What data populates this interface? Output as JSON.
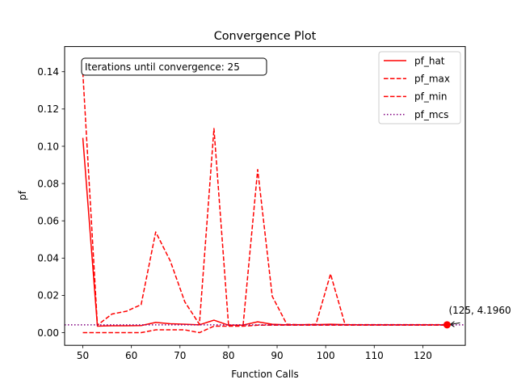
{
  "chart_data": {
    "type": "line",
    "title": "Convergence Plot",
    "xlabel": "Function Calls",
    "ylabel": "pf",
    "xlim": [
      46.25,
      128.75
    ],
    "ylim": [
      -0.0068,
      0.1535
    ],
    "xticks": [
      50,
      60,
      70,
      80,
      90,
      100,
      110,
      120
    ],
    "yticks": [
      0.0,
      0.02,
      0.04,
      0.06,
      0.08,
      0.1,
      0.12,
      0.14
    ],
    "ytick_labels": [
      "0.00",
      "0.02",
      "0.04",
      "0.06",
      "0.08",
      "0.10",
      "0.12",
      "0.14"
    ],
    "legend_position": "upper right",
    "series": [
      {
        "name": "pf_hat",
        "color": "#ff0000",
        "style": "solid",
        "x": [
          50,
          53,
          56,
          59,
          62,
          65,
          68,
          71,
          74,
          77,
          80,
          83,
          86,
          89,
          92,
          95,
          98,
          101,
          104,
          107,
          110,
          113,
          116,
          119,
          122,
          125
        ],
        "y": [
          0.1045,
          0.0035,
          0.0037,
          0.0037,
          0.0038,
          0.0055,
          0.0048,
          0.0045,
          0.0042,
          0.0067,
          0.004,
          0.0041,
          0.0058,
          0.0045,
          0.0042,
          0.0043,
          0.0043,
          0.0045,
          0.0043,
          0.0042,
          0.0042,
          0.0042,
          0.0042,
          0.0042,
          0.0042,
          0.0042
        ]
      },
      {
        "name": "pf_max",
        "color": "#ff0000",
        "style": "dashed",
        "x": [
          50,
          53,
          56,
          59,
          62,
          65,
          68,
          71,
          74,
          77,
          80,
          83,
          86,
          89,
          92,
          95,
          98,
          101,
          104,
          107,
          110,
          113,
          116,
          119,
          122,
          125
        ],
        "y": [
          0.1395,
          0.004,
          0.01,
          0.0115,
          0.015,
          0.054,
          0.0385,
          0.0165,
          0.0045,
          0.1095,
          0.004,
          0.004,
          0.0875,
          0.0195,
          0.0045,
          0.0042,
          0.0045,
          0.0315,
          0.0043,
          0.0043,
          0.0043,
          0.0043,
          0.0043,
          0.0043,
          0.0043,
          0.0043
        ]
      },
      {
        "name": "pf_min",
        "color": "#ff0000",
        "style": "dashed",
        "x": [
          50,
          53,
          56,
          59,
          62,
          65,
          68,
          71,
          74,
          77,
          80,
          83,
          86,
          89,
          92,
          95,
          98,
          101,
          104,
          107,
          110,
          113,
          116,
          119,
          122,
          125
        ],
        "y": [
          0.0,
          0.0,
          0.0,
          0.0,
          0.0,
          0.0015,
          0.0015,
          0.0015,
          0.0,
          0.0035,
          0.0035,
          0.0035,
          0.004,
          0.004,
          0.004,
          0.004,
          0.004,
          0.004,
          0.004,
          0.004,
          0.004,
          0.004,
          0.004,
          0.004,
          0.004,
          0.004
        ]
      },
      {
        "name": "pf_mcs",
        "color": "#800080",
        "style": "dotted",
        "x": [
          46.25,
          128.75
        ],
        "y": [
          0.0042,
          0.0042
        ]
      }
    ],
    "final_point": {
      "x": 125,
      "y": 0.0042,
      "color": "#ff0000"
    },
    "annotations": {
      "box_text": "Iterations until convergence: 25",
      "point_text": "(125, 4.1960"
    }
  }
}
